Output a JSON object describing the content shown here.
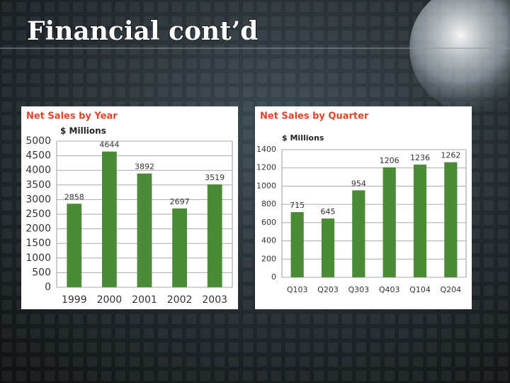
{
  "title": "Financial cont’d",
  "chart_data": [
    {
      "type": "bar",
      "title": "Net Sales by Year",
      "subtitle": "$ Millions",
      "categories": [
        "1999",
        "2000",
        "2001",
        "2002",
        "2003"
      ],
      "values": [
        2858,
        4644,
        3892,
        2697,
        3519
      ],
      "color": "#4b8a36",
      "ylim": [
        0,
        5000
      ],
      "yticks": [
        0,
        500,
        1000,
        1500,
        2000,
        2500,
        3000,
        3500,
        4000,
        4500,
        5000
      ],
      "grid": true
    },
    {
      "type": "bar",
      "title": "Net Sales by Quarter",
      "subtitle": "$ Millions",
      "categories": [
        "Q103",
        "Q203",
        "Q303",
        "Q403",
        "Q104",
        "Q204"
      ],
      "values": [
        715,
        645,
        954,
        1206,
        1236,
        1262
      ],
      "color": "#4b8a36",
      "ylim": [
        0,
        1400
      ],
      "yticks": [
        0,
        200,
        400,
        600,
        800,
        1000,
        1200,
        1400
      ],
      "grid": true
    }
  ]
}
